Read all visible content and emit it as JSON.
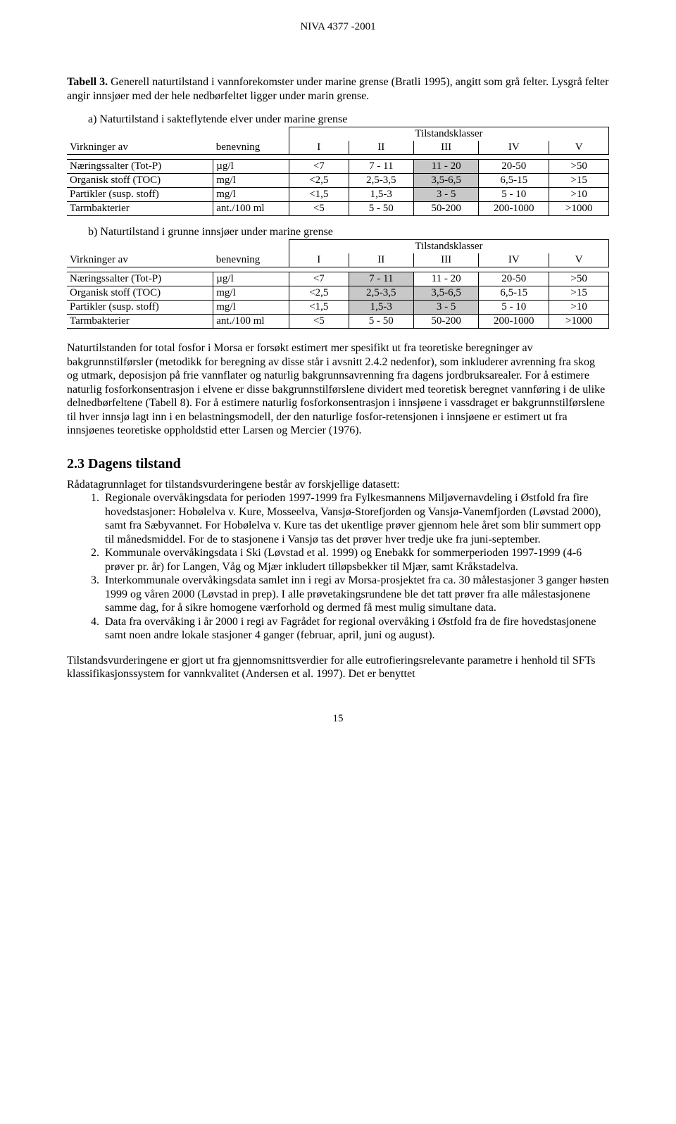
{
  "header": "NIVA 4377 -2001",
  "caption_prefix": "Tabell 3.",
  "caption_text": " Generell naturtilstand i vannforekomster under marine grense (Bratli 1995), angitt som grå felter. Lysgrå felter angir innsjøer med der hele nedbørfeltet ligger under marin grense.",
  "sub_a": "a) Naturtilstand i sakteflytende elver under marine grense",
  "sub_b": "b) Naturtilstand i grunne innsjøer under marine grense",
  "tilstandsklasser": "Tilstandsklasser",
  "virkninger_av": "Virkninger av",
  "benevning": "benevning",
  "class_cols": [
    "I",
    "II",
    "III",
    "IV",
    "V"
  ],
  "table_a": {
    "rows": [
      {
        "label": "Næringssalter (Tot-P)",
        "unit": "µg/l",
        "v": [
          "<7",
          "7 - 11",
          "11 - 20",
          "20-50",
          ">50"
        ],
        "shade": [
          0,
          0,
          1,
          0,
          0
        ]
      },
      {
        "label": "Organisk stoff (TOC)",
        "unit": "mg/l",
        "v": [
          "<2,5",
          "2,5-3,5",
          "3,5-6,5",
          "6,5-15",
          ">15"
        ],
        "shade": [
          0,
          0,
          1,
          0,
          0
        ]
      },
      {
        "label": "Partikler (susp. stoff)",
        "unit": "mg/l",
        "v": [
          "<1,5",
          "1,5-3",
          "3 - 5",
          "5 - 10",
          ">10"
        ],
        "shade": [
          0,
          0,
          1,
          0,
          0
        ]
      },
      {
        "label": "Tarmbakterier",
        "unit": "ant./100 ml",
        "v": [
          "<5",
          "5 - 50",
          "50-200",
          "200-1000",
          ">1000"
        ],
        "shade": [
          0,
          0,
          0,
          0,
          0
        ]
      }
    ]
  },
  "table_b": {
    "rows": [
      {
        "label": "Næringssalter (Tot-P)",
        "unit": "µg/l",
        "v": [
          "<7",
          "7 - 11",
          "11 - 20",
          "20-50",
          ">50"
        ],
        "shade": [
          0,
          1,
          0,
          0,
          0
        ]
      },
      {
        "label": "Organisk stoff (TOC)",
        "unit": "mg/l",
        "v": [
          "<2,5",
          "2,5-3,5",
          "3,5-6,5",
          "6,5-15",
          ">15"
        ],
        "shade": [
          0,
          1,
          1,
          0,
          0
        ]
      },
      {
        "label": "Partikler (susp. stoff)",
        "unit": "mg/l",
        "v": [
          "<1,5",
          "1,5-3",
          "3 - 5",
          "5 - 10",
          ">10"
        ],
        "shade": [
          0,
          1,
          1,
          0,
          0
        ]
      },
      {
        "label": "Tarmbakterier",
        "unit": "ant./100 ml",
        "v": [
          "<5",
          "5 - 50",
          "50-200",
          "200-1000",
          ">1000"
        ],
        "shade": [
          0,
          0,
          0,
          0,
          0
        ]
      }
    ]
  },
  "body_para": "Naturtilstanden for total fosfor i Morsa er forsøkt estimert mer spesifikt ut fra teoretiske beregninger av bakgrunnstilførsler (metodikk for beregning av disse står i avsnitt 2.4.2 nedenfor), som inkluderer avrenning fra skog og utmark, deposisjon på frie vannflater og naturlig bakgrunnsavrenning fra dagens jordbruksarealer. For å estimere naturlig fosforkonsentrasjon i elvene er disse bakgrunnstilførslene dividert med teoretisk beregnet vannføring i de ulike delnedbørfeltene (Tabell 8). For å estimere naturlig fosforkonsentrasjon i innsjøene i vassdraget er bakgrunnstilførslene til hver innsjø lagt inn i en belastningsmodell, der den naturlige fosfor-retensjonen i innsjøene er estimert ut fra innsjøenes teoretiske oppholdstid etter Larsen og Mercier (1976).",
  "section_heading": "2.3 Dagens tilstand",
  "dagens_intro": "Rådatagrunnlaget for tilstandsvurderingene består av forskjellige datasett:",
  "dagens_list": [
    "Regionale overvåkingsdata for perioden 1997-1999 fra Fylkesmannens Miljøvernavdeling i Østfold fra fire hovedstasjoner:  Hobølelva v. Kure, Mosseelva, Vansjø-Storefjorden og Vansjø-Vanemfjorden (Løvstad 2000), samt fra Sæbyvannet. For Hobølelva v. Kure tas det ukentlige prøver gjennom hele året som blir summert opp til månedsmiddel. For de to stasjonene i Vansjø tas det prøver hver tredje uke fra juni-september.",
    "Kommunale overvåkingsdata i Ski (Løvstad et al. 1999) og Enebakk for sommerperioden 1997-1999 (4-6 prøver pr. år) for Langen, Våg og Mjær inkludert tilløpsbekker til Mjær, samt Kråkstadelva.",
    "Interkommunale overvåkingsdata samlet inn i regi av Morsa-prosjektet fra ca. 30 målestasjoner 3 ganger høsten 1999 og våren 2000 (Løvstad in prep). I alle prøvetakingsrundene ble det tatt prøver fra alle målestasjonene samme dag, for å sikre homogene værforhold og dermed få mest mulig simultane data.",
    "Data fra overvåking i år 2000 i regi av Fagrådet for regional overvåking i Østfold fra de fire hovedstasjonene samt noen andre lokale stasjoner 4 ganger (februar, april, juni og august)."
  ],
  "footer_para": "Tilstandsvurderingene er gjort ut fra gjennomsnittsverdier for alle eutrofieringsrelevante parametre i henhold til SFTs klassifikasjonssystem for vannkvalitet (Andersen et al. 1997). Det er benyttet",
  "page_number": "15",
  "colwidths": [
    "27%",
    "14%",
    "11%",
    "12%",
    "12%",
    "13%",
    "11%"
  ],
  "shade_color": "#c8c8c8"
}
